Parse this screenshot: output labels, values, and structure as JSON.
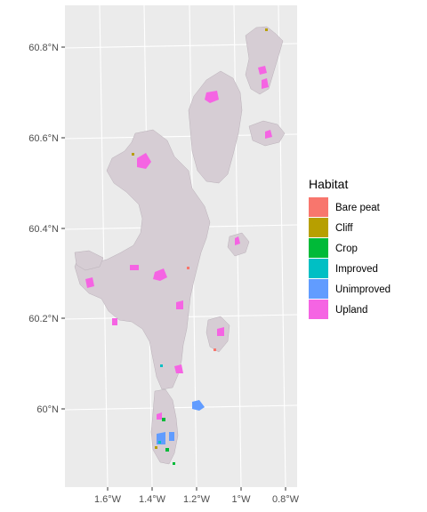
{
  "chart_data": {
    "type": "map",
    "title": "",
    "xlabel": "",
    "ylabel": "",
    "x_ticks": [
      "1.6°W",
      "1.4°W",
      "1.2°W",
      "1°W",
      "0.8°W"
    ],
    "y_ticks": [
      "60.8°N",
      "60.6°N",
      "60.4°N",
      "60.2°N",
      "60°N"
    ],
    "panel_background": "#ebebeb",
    "grid": true,
    "legend": {
      "title": "Habitat",
      "position": "right",
      "entries": [
        {
          "label": "Bare peat",
          "color": "#F8766D"
        },
        {
          "label": "Cliff",
          "color": "#B79F00"
        },
        {
          "label": "Crop",
          "color": "#00BA38"
        },
        {
          "label": "Improved",
          "color": "#00BFC4"
        },
        {
          "label": "Unimproved",
          "color": "#619CFF"
        },
        {
          "label": "Upland",
          "color": "#F564E3"
        }
      ]
    }
  }
}
